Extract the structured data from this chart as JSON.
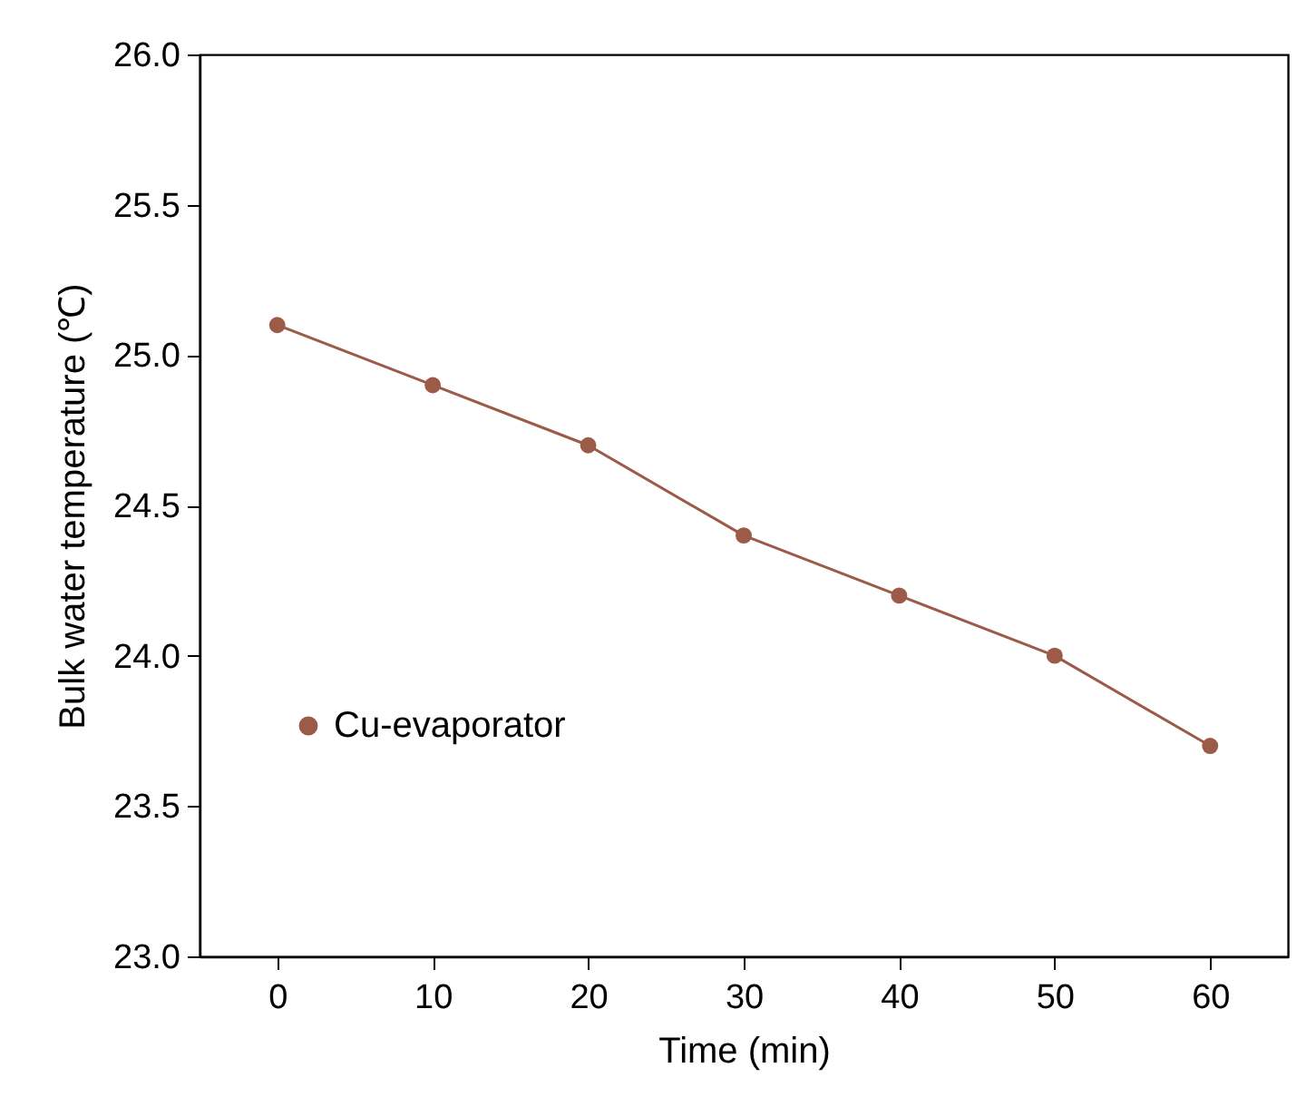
{
  "chart_data": {
    "type": "line",
    "xlabel": "Time (min)",
    "ylabel": "Bulk water temperature (℃)",
    "x": [
      0,
      10,
      20,
      30,
      40,
      50,
      60
    ],
    "series": [
      {
        "name": "Cu-evaporator",
        "color": "#9c5a48",
        "values": [
          25.1,
          24.9,
          24.7,
          24.4,
          24.2,
          24.0,
          23.7
        ]
      }
    ],
    "xlim": [
      -5,
      65
    ],
    "xticks": [
      0,
      10,
      20,
      30,
      40,
      50,
      60
    ],
    "ylim": [
      23.0,
      26.0
    ],
    "yticks": [
      {
        "value": 23.0,
        "label": "23.0"
      },
      {
        "value": 23.5,
        "label": "23.5"
      },
      {
        "value": 24.0,
        "label": "24.0"
      },
      {
        "value": 24.5,
        "label": "24.5"
      },
      {
        "value": 25.0,
        "label": "25.0"
      },
      {
        "value": 25.5,
        "label": "25.5"
      },
      {
        "value": 26.0,
        "label": "26.0"
      }
    ],
    "grid": false,
    "legend": "left",
    "marker": "circle",
    "line_style": "solid"
  }
}
